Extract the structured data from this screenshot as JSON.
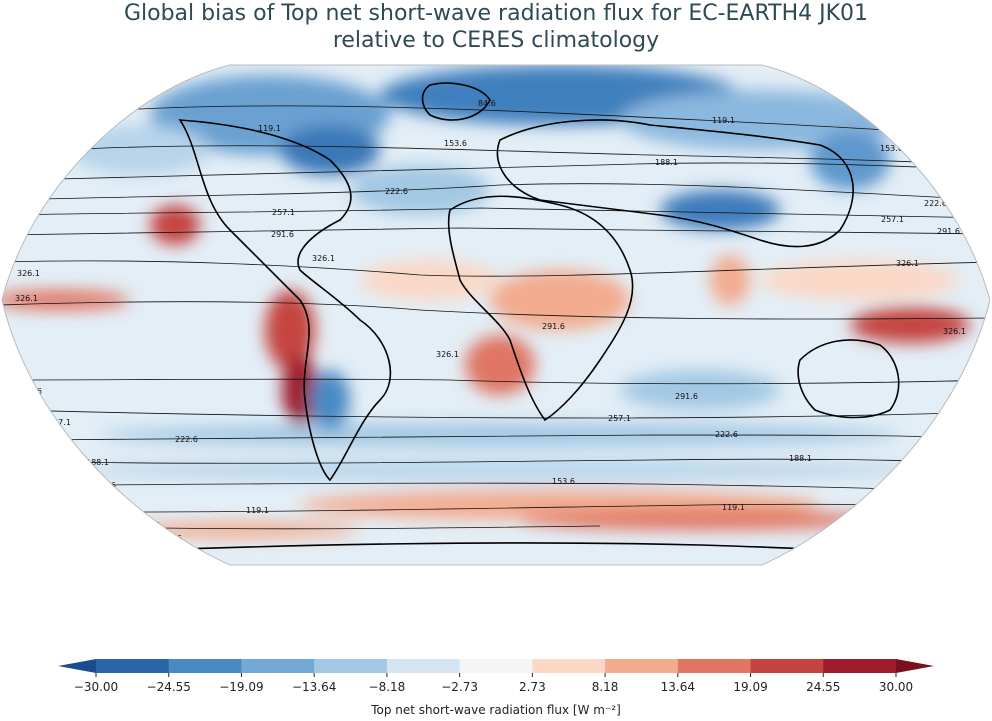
{
  "title": {
    "line1": "Global bias of Top net short-wave radiation flux for EC-EARTH4 JK01",
    "line2": "relative to CERES climatology"
  },
  "colorbar": {
    "label": "Top net short-wave radiation flux [W m⁻²]",
    "ticks": [
      "−30.00",
      "−24.55",
      "−19.09",
      "−13.64",
      "−8.18",
      "−2.73",
      "2.73",
      "8.18",
      "13.64",
      "19.09",
      "24.55",
      "30.00"
    ],
    "colors": [
      "#2a65a8",
      "#4a8ac4",
      "#72a9d6",
      "#a3c8e4",
      "#d3e5f1",
      "#f5f5f5",
      "#fbd8c6",
      "#f3ab8e",
      "#e07663",
      "#c5443f",
      "#9e1b2c"
    ],
    "extend_low": "#1a4d8f",
    "extend_high": "#7a0f1f"
  },
  "contours": {
    "levels": [
      "84.6",
      "119.1",
      "153.6",
      "188.1",
      "222.6",
      "257.1",
      "291.6",
      "326.1"
    ]
  }
}
